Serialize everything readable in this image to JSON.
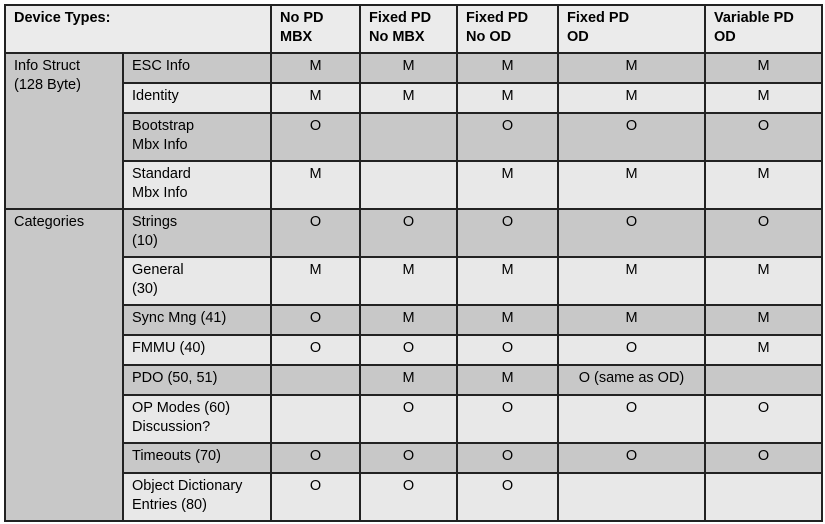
{
  "header": {
    "label": "Device Types:",
    "columns": [
      [
        "No PD",
        "MBX"
      ],
      [
        "Fixed PD",
        "No MBX"
      ],
      [
        "Fixed PD",
        "No OD"
      ],
      [
        "Fixed PD",
        "OD"
      ],
      [
        "Variable PD",
        "OD"
      ]
    ]
  },
  "groups": [
    {
      "label": [
        "Info Struct",
        "(128 Byte)"
      ]
    },
    {
      "label": [
        "Categories"
      ]
    }
  ],
  "rows": [
    {
      "name": [
        "ESC Info"
      ],
      "values": [
        "M",
        "M",
        "M",
        "M",
        "M"
      ]
    },
    {
      "name": [
        "Identity"
      ],
      "values": [
        "M",
        "M",
        "M",
        "M",
        "M"
      ]
    },
    {
      "name": [
        "Bootstrap",
        "Mbx Info"
      ],
      "values": [
        "O",
        "",
        "O",
        "O",
        "O"
      ]
    },
    {
      "name": [
        "Standard",
        "Mbx Info"
      ],
      "values": [
        "M",
        "",
        "M",
        "M",
        "M"
      ]
    },
    {
      "name": [
        "Strings",
        "(10)"
      ],
      "values": [
        "O",
        "O",
        "O",
        "O",
        "O"
      ]
    },
    {
      "name": [
        "General",
        "(30)"
      ],
      "values": [
        "M",
        "M",
        "M",
        "M",
        "M"
      ]
    },
    {
      "name": [
        "Sync Mng (41)"
      ],
      "values": [
        "O",
        "M",
        "M",
        "M",
        "M"
      ]
    },
    {
      "name": [
        "FMMU (40)"
      ],
      "values": [
        "O",
        "O",
        "O",
        "O",
        "M"
      ]
    },
    {
      "name": [
        "PDO (50, 51)"
      ],
      "values": [
        "",
        "M",
        "M",
        "O (same as OD)",
        ""
      ]
    },
    {
      "name": [
        "OP Modes (60)",
        "Discussion?"
      ],
      "values": [
        "",
        "O",
        "O",
        "O",
        "O"
      ]
    },
    {
      "name": [
        "Timeouts (70)"
      ],
      "values": [
        "O",
        "O",
        "O",
        "O",
        "O"
      ]
    },
    {
      "name": [
        "Object Dictionary",
        "Entries (80)"
      ],
      "values": [
        "O",
        "O",
        "O",
        "",
        ""
      ]
    }
  ],
  "colors": {
    "dark_row": "#c8c8c8",
    "light_row": "#e8e8e8",
    "header": "#ebebeb",
    "border": "#222222"
  }
}
